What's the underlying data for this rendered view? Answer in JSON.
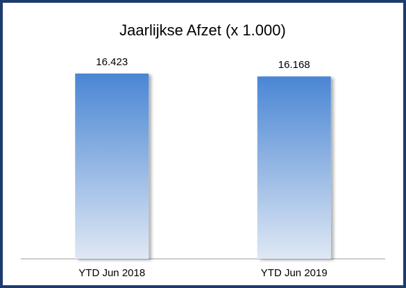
{
  "chart_data": {
    "type": "bar",
    "title": "Jaarlijkse Afzet (x 1.000)",
    "categories": [
      "YTD Jun 2018",
      "YTD Jun 2019"
    ],
    "values": [
      16423,
      16168
    ],
    "value_labels": [
      "16.423",
      "16.168"
    ],
    "color": "#4a86d4"
  }
}
